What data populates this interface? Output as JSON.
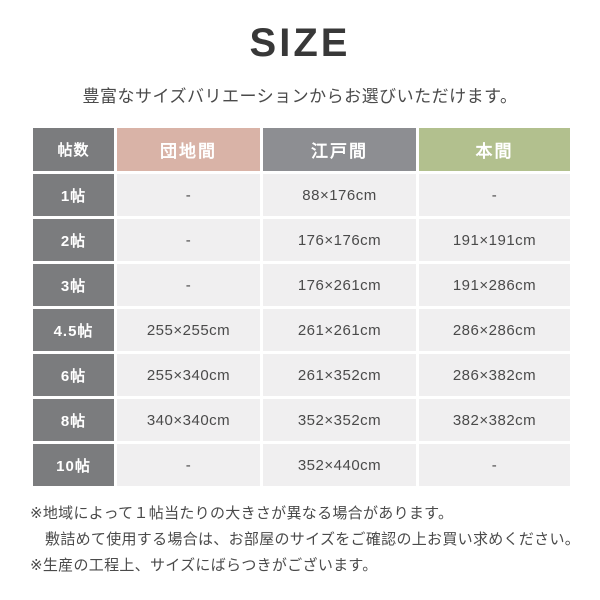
{
  "page": {
    "title": "SIZE",
    "subtitle": "豊富なサイズバリエーションからお選びいただけます。"
  },
  "table": {
    "headers": {
      "josu": "帖数",
      "danchi": "団地間",
      "edoma": "江戸間",
      "honma": "本間"
    },
    "rows": [
      {
        "label": "1帖",
        "danchi": "-",
        "edoma": "88×176cm",
        "honma": "-"
      },
      {
        "label": "2帖",
        "danchi": "-",
        "edoma": "176×176cm",
        "honma": "191×191cm"
      },
      {
        "label": "3帖",
        "danchi": "-",
        "edoma": "176×261cm",
        "honma": "191×286cm"
      },
      {
        "label": "4.5帖",
        "danchi": "255×255cm",
        "edoma": "261×261cm",
        "honma": "286×286cm"
      },
      {
        "label": "6帖",
        "danchi": "255×340cm",
        "edoma": "261×352cm",
        "honma": "286×382cm"
      },
      {
        "label": "8帖",
        "danchi": "340×340cm",
        "edoma": "352×352cm",
        "honma": "382×382cm"
      },
      {
        "label": "10帖",
        "danchi": "-",
        "edoma": "352×440cm",
        "honma": "-"
      }
    ]
  },
  "notes": [
    {
      "text": "※地域によって１帖当たりの大きさが異なる場合があります。",
      "indent": false
    },
    {
      "text": "敷詰めて使用する場合は、お部屋のサイズをご確認の上お買い求めください。",
      "indent": true
    },
    {
      "text": "※生産の工程上、サイズにばらつきがございます。",
      "indent": false
    }
  ],
  "colors": {
    "dark": "#7b7c7e",
    "pink": "#d9b3a7",
    "gray": "#8d8e92",
    "green": "#b2c08e",
    "cell": "#f0eff0",
    "text": "#4a4a4a",
    "title": "#383838"
  }
}
